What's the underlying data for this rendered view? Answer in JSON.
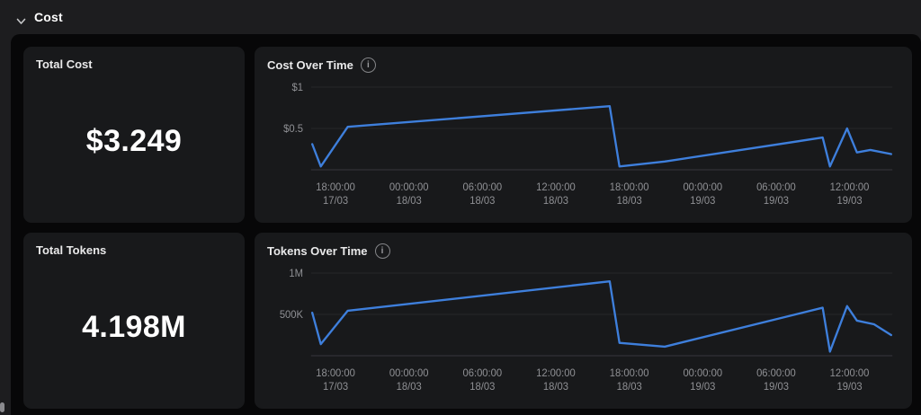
{
  "section": {
    "label": "Cost"
  },
  "icons": {
    "section_chevron": "chevron-down",
    "chart_info": "info-circle",
    "info_glyph": "i"
  },
  "colors": {
    "accent_line": "#3e7fdc",
    "card_bg": "#18191b",
    "panel_bg": "#070708",
    "page_bg": "#1d1d1f"
  },
  "cards": {
    "total_cost": {
      "label": "Total Cost",
      "value": "$3.249"
    },
    "total_tokens": {
      "label": "Total Tokens",
      "value": "4.198M"
    }
  },
  "chart_data": [
    {
      "type": "line",
      "title": "Cost Over Time",
      "color": "#3e7fdc",
      "legend": "none",
      "grid": true,
      "ylim": [
        0,
        1
      ],
      "ymax": 1,
      "y_ticks": [
        {
          "label": "$1",
          "v": 1.0
        },
        {
          "label": "$0.5",
          "v": 0.5
        }
      ],
      "x_unit": "hours since 17/03 00:00",
      "x_range_hours": [
        16,
        63.5
      ],
      "x_ticks": [
        {
          "h": 18,
          "l1": "18:00:00",
          "l2": "17/03"
        },
        {
          "h": 24,
          "l1": "00:00:00",
          "l2": "18/03"
        },
        {
          "h": 30,
          "l1": "06:00:00",
          "l2": "18/03"
        },
        {
          "h": 36,
          "l1": "12:00:00",
          "l2": "18/03"
        },
        {
          "h": 42,
          "l1": "18:00:00",
          "l2": "18/03"
        },
        {
          "h": 48,
          "l1": "00:00:00",
          "l2": "19/03"
        },
        {
          "h": 54,
          "l1": "06:00:00",
          "l2": "19/03"
        },
        {
          "h": 60,
          "l1": "12:00:00",
          "l2": "19/03"
        }
      ],
      "points": [
        [
          16.1,
          0.31
        ],
        [
          16.8,
          0.04
        ],
        [
          19.0,
          0.52
        ],
        [
          40.4,
          0.77
        ],
        [
          41.2,
          0.04
        ],
        [
          44.9,
          0.1
        ],
        [
          57.8,
          0.39
        ],
        [
          58.4,
          0.04
        ],
        [
          59.8,
          0.5
        ],
        [
          60.6,
          0.21
        ],
        [
          61.7,
          0.24
        ],
        [
          63.4,
          0.19
        ]
      ]
    },
    {
      "type": "line",
      "title": "Tokens Over Time",
      "color": "#3e7fdc",
      "legend": "none",
      "grid": true,
      "ylim": [
        0,
        1000000
      ],
      "ymax": 1000000,
      "y_ticks": [
        {
          "label": "1M",
          "v": 1000000
        },
        {
          "label": "500K",
          "v": 500000
        }
      ],
      "x_unit": "hours since 17/03 00:00",
      "x_range_hours": [
        16,
        63.5
      ],
      "x_ticks": [
        {
          "h": 18,
          "l1": "18:00:00",
          "l2": "17/03"
        },
        {
          "h": 24,
          "l1": "00:00:00",
          "l2": "18/03"
        },
        {
          "h": 30,
          "l1": "06:00:00",
          "l2": "18/03"
        },
        {
          "h": 36,
          "l1": "12:00:00",
          "l2": "18/03"
        },
        {
          "h": 42,
          "l1": "18:00:00",
          "l2": "18/03"
        },
        {
          "h": 48,
          "l1": "00:00:00",
          "l2": "19/03"
        },
        {
          "h": 54,
          "l1": "06:00:00",
          "l2": "19/03"
        },
        {
          "h": 60,
          "l1": "12:00:00",
          "l2": "19/03"
        }
      ],
      "points": [
        [
          16.1,
          520000
        ],
        [
          16.8,
          140000
        ],
        [
          19.0,
          545000
        ],
        [
          40.4,
          900000
        ],
        [
          41.2,
          155000
        ],
        [
          44.9,
          110000
        ],
        [
          57.8,
          580000
        ],
        [
          58.4,
          50000
        ],
        [
          59.8,
          600000
        ],
        [
          60.6,
          425000
        ],
        [
          62.0,
          380000
        ],
        [
          63.4,
          250000
        ]
      ]
    }
  ]
}
